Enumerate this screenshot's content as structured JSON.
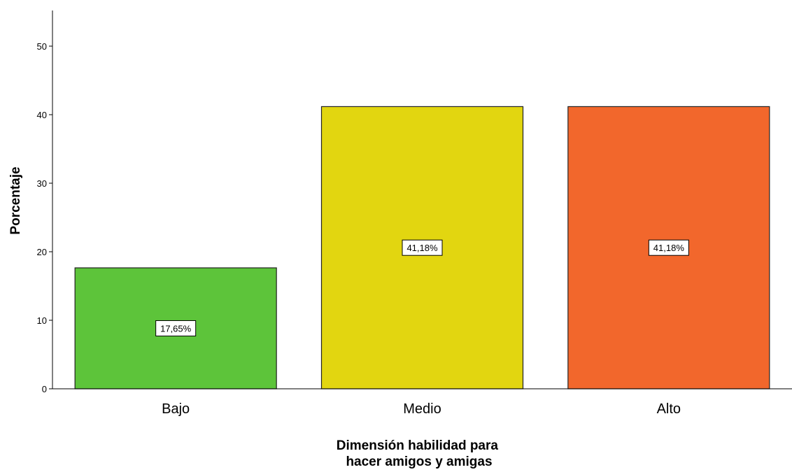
{
  "chart_data": {
    "type": "bar",
    "categories": [
      "Bajo",
      "Medio",
      "Alto"
    ],
    "values": [
      17.65,
      41.18,
      41.18
    ],
    "data_labels": [
      "17,65%",
      "41,18%",
      "41,18%"
    ],
    "colors": [
      "#5dc43a",
      "#e2d610",
      "#f2672c"
    ],
    "ylabel": "Porcentaje",
    "xlabel_lines": [
      "Dimensión  habilidad para",
      "hacer amigos y amigas"
    ],
    "yticks": [
      "0",
      "10",
      "20",
      "30",
      "40",
      "50"
    ],
    "ylim": [
      0,
      55
    ],
    "grid": false,
    "legend": "none"
  }
}
